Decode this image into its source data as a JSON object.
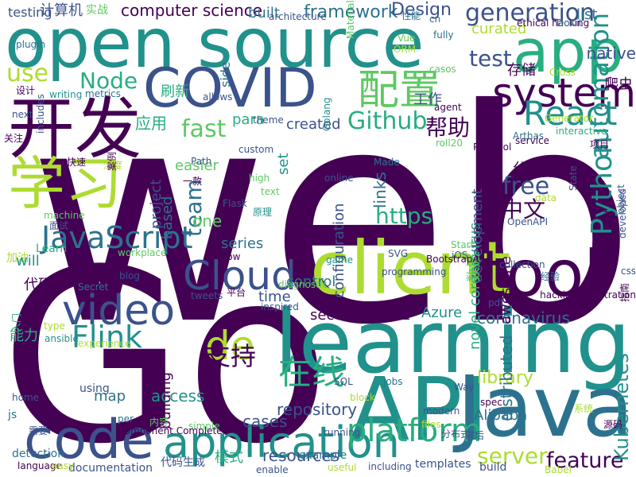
{
  "palette": {
    "dark_purple": "#440154",
    "indigo": "#3b528b",
    "teal_blue": "#2c728e",
    "teal": "#21918c",
    "green": "#28ae80",
    "light_green": "#5ec962",
    "lime": "#addc30",
    "yellow_green": "#c8e020"
  },
  "words": [
    {
      "text": "web",
      "color": "#440154"
    },
    {
      "text": "Go",
      "color": "#440154"
    },
    {
      "text": "open source",
      "color": "#21918c"
    },
    {
      "text": "app",
      "color": "#28ae80"
    },
    {
      "text": "开发",
      "color": "#440154"
    },
    {
      "text": "COVID",
      "color": "#3b528b"
    },
    {
      "text": "学习",
      "color": "#addc30"
    },
    {
      "text": "learning",
      "color": "#21918c"
    },
    {
      "text": "client",
      "color": "#addc30"
    },
    {
      "text": "tool",
      "color": "#440154"
    },
    {
      "text": "API",
      "color": "#21918c"
    },
    {
      "text": "Java",
      "color": "#2c728e"
    },
    {
      "text": "code",
      "color": "#3b528b"
    },
    {
      "text": "application",
      "color": "#21918c"
    },
    {
      "text": "Cloud",
      "color": "#3b528b"
    },
    {
      "text": "配置",
      "color": "#5ec962"
    },
    {
      "text": "system",
      "color": "#440154"
    },
    {
      "text": "React",
      "color": "#21918c"
    },
    {
      "text": "video",
      "color": "#3b528b"
    },
    {
      "text": "JavaScript",
      "color": "#2c728e"
    },
    {
      "text": "Python",
      "color": "#21918c"
    },
    {
      "text": "automation",
      "color": "#21918c"
    },
    {
      "text": "platform",
      "color": "#28ae80"
    },
    {
      "text": "Flink",
      "color": "#21918c"
    },
    {
      "text": "de",
      "color": "#addc30"
    },
    {
      "text": "在线",
      "color": "#28ae80"
    },
    {
      "text": "Github",
      "color": "#28ae80"
    },
    {
      "text": "generation",
      "color": "#3b528b"
    },
    {
      "text": "framework",
      "color": "#2c728e"
    },
    {
      "text": "computer science",
      "color": "#440154"
    },
    {
      "text": "Design",
      "color": "#3b528b"
    },
    {
      "text": "test",
      "color": "#3b528b"
    },
    {
      "text": "free",
      "color": "#3b528b"
    },
    {
      "text": "https",
      "color": "#28ae80"
    },
    {
      "text": "中文",
      "color": "#440154"
    },
    {
      "text": "Node",
      "color": "#28ae80"
    },
    {
      "text": "use",
      "color": "#addc30"
    },
    {
      "text": "team",
      "color": "#2c728e"
    },
    {
      "text": "支持",
      "color": "#440154"
    },
    {
      "text": "fast",
      "color": "#5ec962"
    },
    {
      "text": "帮助",
      "color": "#440154"
    },
    {
      "text": "feature",
      "color": "#440154"
    },
    {
      "text": "server",
      "color": "#addc30"
    },
    {
      "text": "resources",
      "color": "#3b528b"
    },
    {
      "text": "repository",
      "color": "#3b528b"
    },
    {
      "text": "Alibaba",
      "color": "#2c728e"
    },
    {
      "text": "library",
      "color": "#addc30"
    },
    {
      "text": "HTML",
      "color": "#440154"
    },
    {
      "text": "Azure",
      "color": "#21918c"
    },
    {
      "text": "coronavirus",
      "color": "#2c728e"
    },
    {
      "text": "awesome",
      "color": "#440154"
    },
    {
      "text": "Kubernetes",
      "color": "#21918c"
    },
    {
      "text": "distributed",
      "color": "#2c728e"
    },
    {
      "text": "novel coronavirus",
      "color": "#28ae80"
    },
    {
      "text": "development",
      "color": "#3b528b"
    },
    {
      "text": "configuration",
      "color": "#3b528b"
    },
    {
      "text": "building",
      "color": "#440154"
    },
    {
      "text": "created",
      "color": "#3b528b"
    },
    {
      "text": "secure",
      "color": "#440154"
    },
    {
      "text": "time",
      "color": "#3b528b"
    },
    {
      "text": "cases",
      "color": "#3b528b"
    },
    {
      "text": "access",
      "color": "#21918c"
    },
    {
      "text": "map",
      "color": "#2c728e"
    },
    {
      "text": "one",
      "color": "#5ec962"
    },
    {
      "text": "series",
      "color": "#2c728e"
    },
    {
      "text": "easier",
      "color": "#5ec962"
    },
    {
      "text": "project",
      "color": "#3b528b"
    },
    {
      "text": "based",
      "color": "#2c728e"
    },
    {
      "text": "set",
      "color": "#21918c"
    },
    {
      "text": "para",
      "color": "#28ae80"
    },
    {
      "text": "control",
      "color": "#2c728e"
    },
    {
      "text": "数据",
      "color": "#5ec962"
    },
    {
      "text": "应用",
      "color": "#28ae80"
    },
    {
      "text": "刷新",
      "color": "#28ae80"
    },
    {
      "text": "工作",
      "color": "#3b528b"
    },
    {
      "text": "分享",
      "color": "#440154"
    },
    {
      "text": "爬虫",
      "color": "#440154"
    },
    {
      "text": "存储",
      "color": "#440154"
    },
    {
      "text": "curated",
      "color": "#addc30"
    },
    {
      "text": "list",
      "color": "#2c728e"
    },
    {
      "text": "native",
      "color": "#3b528b"
    },
    {
      "text": "built",
      "color": "#2c728e"
    },
    {
      "text": "实战",
      "color": "#5ec962"
    },
    {
      "text": "计算机",
      "color": "#3b528b"
    },
    {
      "text": "testing",
      "color": "#3b528b"
    },
    {
      "text": "side",
      "color": "#2c728e"
    },
    {
      "text": "links",
      "color": "#2c728e"
    },
    {
      "text": "low",
      "color": "#440154"
    },
    {
      "text": "game",
      "color": "#21918c"
    },
    {
      "text": "Learn",
      "color": "#28ae80"
    },
    {
      "text": "加油",
      "color": "#addc30"
    },
    {
      "text": "will",
      "color": "#21918c"
    },
    {
      "text": "代码",
      "color": "#440154"
    },
    {
      "text": "能力",
      "color": "#28ae80"
    },
    {
      "text": "using",
      "color": "#3b528b"
    },
    {
      "text": "js",
      "color": "#2c728e"
    },
    {
      "text": "detection",
      "color": "#2c728e"
    },
    {
      "text": "documentation",
      "color": "#3b528b"
    },
    {
      "text": "experience",
      "color": "#addc30"
    },
    {
      "text": "模式",
      "color": "#28ae80"
    },
    {
      "text": "代码生成",
      "color": "#3b528b"
    },
    {
      "text": "templates",
      "color": "#3b528b"
    },
    {
      "text": "example",
      "color": "#2c728e"
    },
    {
      "text": "build",
      "color": "#3b528b"
    },
    {
      "text": "Babel",
      "color": "#addc30"
    },
    {
      "text": "including",
      "color": "#3b528b"
    },
    {
      "text": "modern",
      "color": "#3b528b"
    },
    {
      "text": "running",
      "color": "#3b528b"
    },
    {
      "text": "SQL",
      "color": "#3b528b"
    },
    {
      "text": "jobs",
      "color": "#2c728e"
    },
    {
      "text": "SVG",
      "color": "#3b528b"
    },
    {
      "text": "iOS",
      "color": "#2c728e"
    },
    {
      "text": "OpenAPI",
      "color": "#3b528b"
    },
    {
      "text": "Start",
      "color": "#5ec962"
    },
    {
      "text": "Made",
      "color": "#2c728e"
    },
    {
      "text": "Path",
      "color": "#3b528b"
    },
    {
      "text": "custom",
      "color": "#3b528b"
    },
    {
      "text": "online",
      "color": "#3b528b"
    },
    {
      "text": "agent",
      "color": "#440154"
    },
    {
      "text": "interactive",
      "color": "#28ae80"
    },
    {
      "text": "Arthas",
      "color": "#2c728e"
    },
    {
      "text": "roll20",
      "color": "#5ec962"
    },
    {
      "text": "service",
      "color": "#440154"
    },
    {
      "text": "Protocol",
      "color": "#440154"
    },
    {
      "text": "ethical hacking",
      "color": "#440154"
    },
    {
      "text": "DoKit",
      "color": "#2c728e"
    },
    {
      "text": "Cross",
      "color": "#addc30"
    },
    {
      "text": "casos",
      "color": "#5ec962"
    },
    {
      "text": "ORM",
      "color": "#addc30"
    },
    {
      "text": "Vue",
      "color": "#5ec962"
    },
    {
      "text": "fully",
      "color": "#2c728e"
    },
    {
      "text": "cn",
      "color": "#2c728e"
    },
    {
      "text": "性能",
      "color": "#2c728e"
    },
    {
      "text": "architecture",
      "color": "#3b528b"
    },
    {
      "text": "Material",
      "color": "#5ec962"
    },
    {
      "text": "theme",
      "color": "#3b528b"
    },
    {
      "text": "Golang",
      "color": "#21918c"
    },
    {
      "text": "allows",
      "color": "#3b528b"
    },
    {
      "text": "metrics",
      "color": "#2c728e"
    },
    {
      "text": "writing",
      "color": "#21918c"
    },
    {
      "text": "设计",
      "color": "#440154"
    },
    {
      "text": "plugin",
      "color": "#2c728e"
    },
    {
      "text": "next",
      "color": "#3b528b"
    },
    {
      "text": "关注",
      "color": "#440154"
    },
    {
      "text": "includes",
      "color": "#3b528b"
    },
    {
      "text": "快速",
      "color": "#440154"
    },
    {
      "text": "深度",
      "color": "#addc30"
    },
    {
      "text": "案例",
      "color": "#440154"
    },
    {
      "text": "machine",
      "color": "#5ec962"
    },
    {
      "text": "面试",
      "color": "#3b528b"
    },
    {
      "text": "一款",
      "color": "#440154"
    },
    {
      "text": "high",
      "color": "#5ec962"
    },
    {
      "text": "text",
      "color": "#5ec962"
    },
    {
      "text": "Flask",
      "color": "#3b528b"
    },
    {
      "text": "原理",
      "color": "#21918c"
    },
    {
      "text": "workplace",
      "color": "#5ec962"
    },
    {
      "text": "表单",
      "color": "#440154"
    },
    {
      "text": "blog",
      "color": "#3b528b"
    },
    {
      "text": "Secret",
      "color": "#2c728e"
    },
    {
      "text": "tweets",
      "color": "#3b528b"
    },
    {
      "text": "平台",
      "color": "#440154"
    },
    {
      "text": "diagnostic",
      "color": "#5ec962"
    },
    {
      "text": "inspired",
      "color": "#3b528b"
    },
    {
      "text": "programming",
      "color": "#3b528b"
    },
    {
      "text": "BootstrapA",
      "color": "#440154"
    },
    {
      "text": "collection",
      "color": "#3b528b"
    },
    {
      "text": "经验",
      "color": "#2c728e"
    },
    {
      "text": "developed",
      "color": "#3b528b"
    },
    {
      "text": "hacking penetration",
      "color": "#440154"
    },
    {
      "text": "指南",
      "color": "#440154"
    },
    {
      "text": "实时",
      "color": "#440154"
    },
    {
      "text": "项目",
      "color": "#440154"
    },
    {
      "text": "Generator",
      "color": "#addc30"
    },
    {
      "text": "data",
      "color": "#addc30"
    },
    {
      "text": "State",
      "color": "#3b528b"
    },
    {
      "text": "object",
      "color": "#3b528b"
    },
    {
      "text": "css",
      "color": "#3b528b"
    },
    {
      "text": "pdf",
      "color": "#3b528b"
    },
    {
      "text": "Way",
      "color": "#3b528b"
    },
    {
      "text": "spec",
      "color": "#440154"
    },
    {
      "text": "系统",
      "color": "#addc30"
    },
    {
      "text": "源码",
      "color": "#440154"
    },
    {
      "text": "前后",
      "color": "#3b528b"
    },
    {
      "text": "分布式",
      "color": "#3b528b"
    },
    {
      "text": "files",
      "color": "#addc30"
    },
    {
      "text": "block",
      "color": "#addc30"
    },
    {
      "text": "useful",
      "color": "#addc30"
    },
    {
      "text": "enable",
      "color": "#3b528b"
    },
    {
      "text": "simple",
      "color": "#5ec962"
    },
    {
      "text": "per",
      "color": "#2c728e"
    },
    {
      "text": "内容",
      "color": "#5ec962"
    },
    {
      "text": "component Complete",
      "color": "#440154"
    },
    {
      "text": "需要",
      "color": "#3b528b"
    },
    {
      "text": "language",
      "color": "#440154"
    },
    {
      "text": "easy",
      "color": "#addc30"
    },
    {
      "text": "home",
      "color": "#3b528b"
    },
    {
      "text": "入门",
      "color": "#28ae80"
    },
    {
      "text": "type",
      "color": "#addc30"
    },
    {
      "text": "ansible",
      "color": "#21918c"
    }
  ]
}
